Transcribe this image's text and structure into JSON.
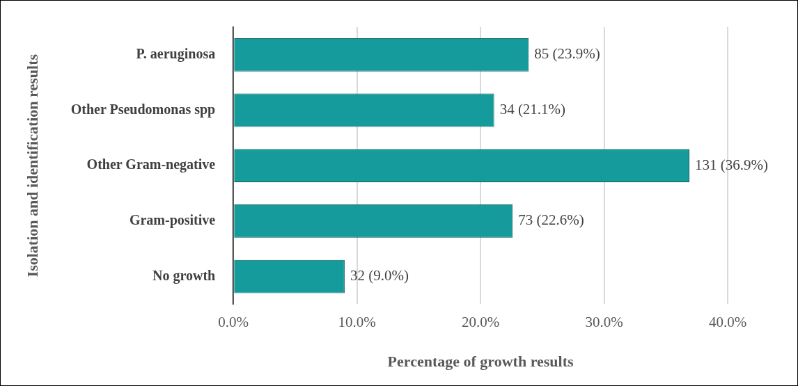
{
  "chart_data": {
    "type": "bar",
    "orientation": "horizontal",
    "xlabel": "Percentage of growth results",
    "ylabel": "Isolation and identification results",
    "categories": [
      "P. aeruginosa",
      "Other Pseudomonas spp",
      "Other Gram-negative",
      "Gram-positive",
      "No growth"
    ],
    "values": [
      23.9,
      21.1,
      36.9,
      22.6,
      9.0
    ],
    "value_labels": [
      "85 (23.9%)",
      "34 (21.1%)",
      "131 (36.9%)",
      "73 (22.6%)",
      "32 (9.0%)"
    ],
    "color": "#159b9b",
    "xlim": [
      0,
      40
    ],
    "xticks": [
      {
        "value": 0,
        "label": "0.0%"
      },
      {
        "value": 10,
        "label": "10.0%"
      },
      {
        "value": 20,
        "label": "20.0%"
      },
      {
        "value": 30,
        "label": "30.0%"
      },
      {
        "value": 40,
        "label": "40.0%"
      }
    ],
    "grid": "x",
    "legend": false
  }
}
